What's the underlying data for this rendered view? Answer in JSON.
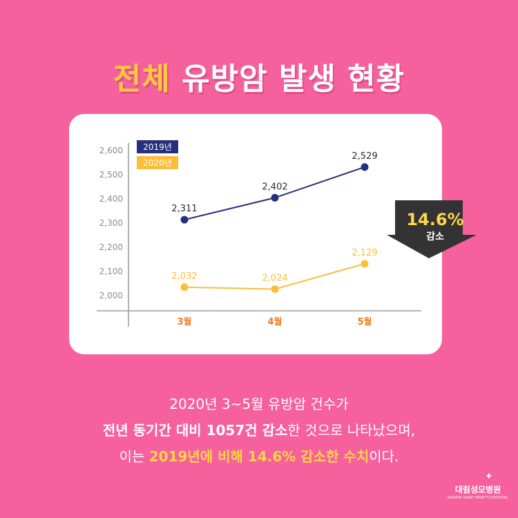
{
  "header": {
    "title_highlight": "전체",
    "title_rest": " 유방암 발생 현황"
  },
  "chart_data": {
    "type": "line",
    "categories": [
      "3월",
      "4월",
      "5월"
    ],
    "series": [
      {
        "name": "2019년",
        "values": [
          2311,
          2402,
          2529
        ],
        "labels": [
          "2,311",
          "2,402",
          "2,529"
        ],
        "color": "#26307a"
      },
      {
        "name": "2020년",
        "values": [
          2032,
          2024,
          2129
        ],
        "labels": [
          "2,032",
          "2,024",
          "2,129"
        ],
        "color": "#fcbd3a"
      }
    ],
    "yticks": [
      2000,
      2100,
      2200,
      2300,
      2400,
      2500,
      2600
    ],
    "ytick_labels": [
      "2,000",
      "2,100",
      "2,200",
      "2,300",
      "2,400",
      "2,500",
      "2,600"
    ],
    "ylim": [
      2000,
      2600
    ],
    "legend_position": "top-left",
    "grid": false
  },
  "badge": {
    "value": "14.6%",
    "label": "감소",
    "color": "#333333"
  },
  "caption": {
    "line1": "2020년 3~5월 유방암 건수가",
    "line2_bold": "전년 동기간 대비 1057건 감소",
    "line2_rest": "한 것으로 나타났으며,",
    "line3_start": "이는 ",
    "line3_highlight": "2019년에 비해 14.6% 감소한 수치",
    "line3_end": "이다."
  },
  "logo": {
    "name": "대림성모병원",
    "sub": "DAERIM SAINT MARY'S HOSPITAL"
  },
  "colors": {
    "background": "#f6609c",
    "title_highlight": "#ffc940",
    "category_label": "#f07a1e",
    "axis": "#9a9a9a"
  }
}
